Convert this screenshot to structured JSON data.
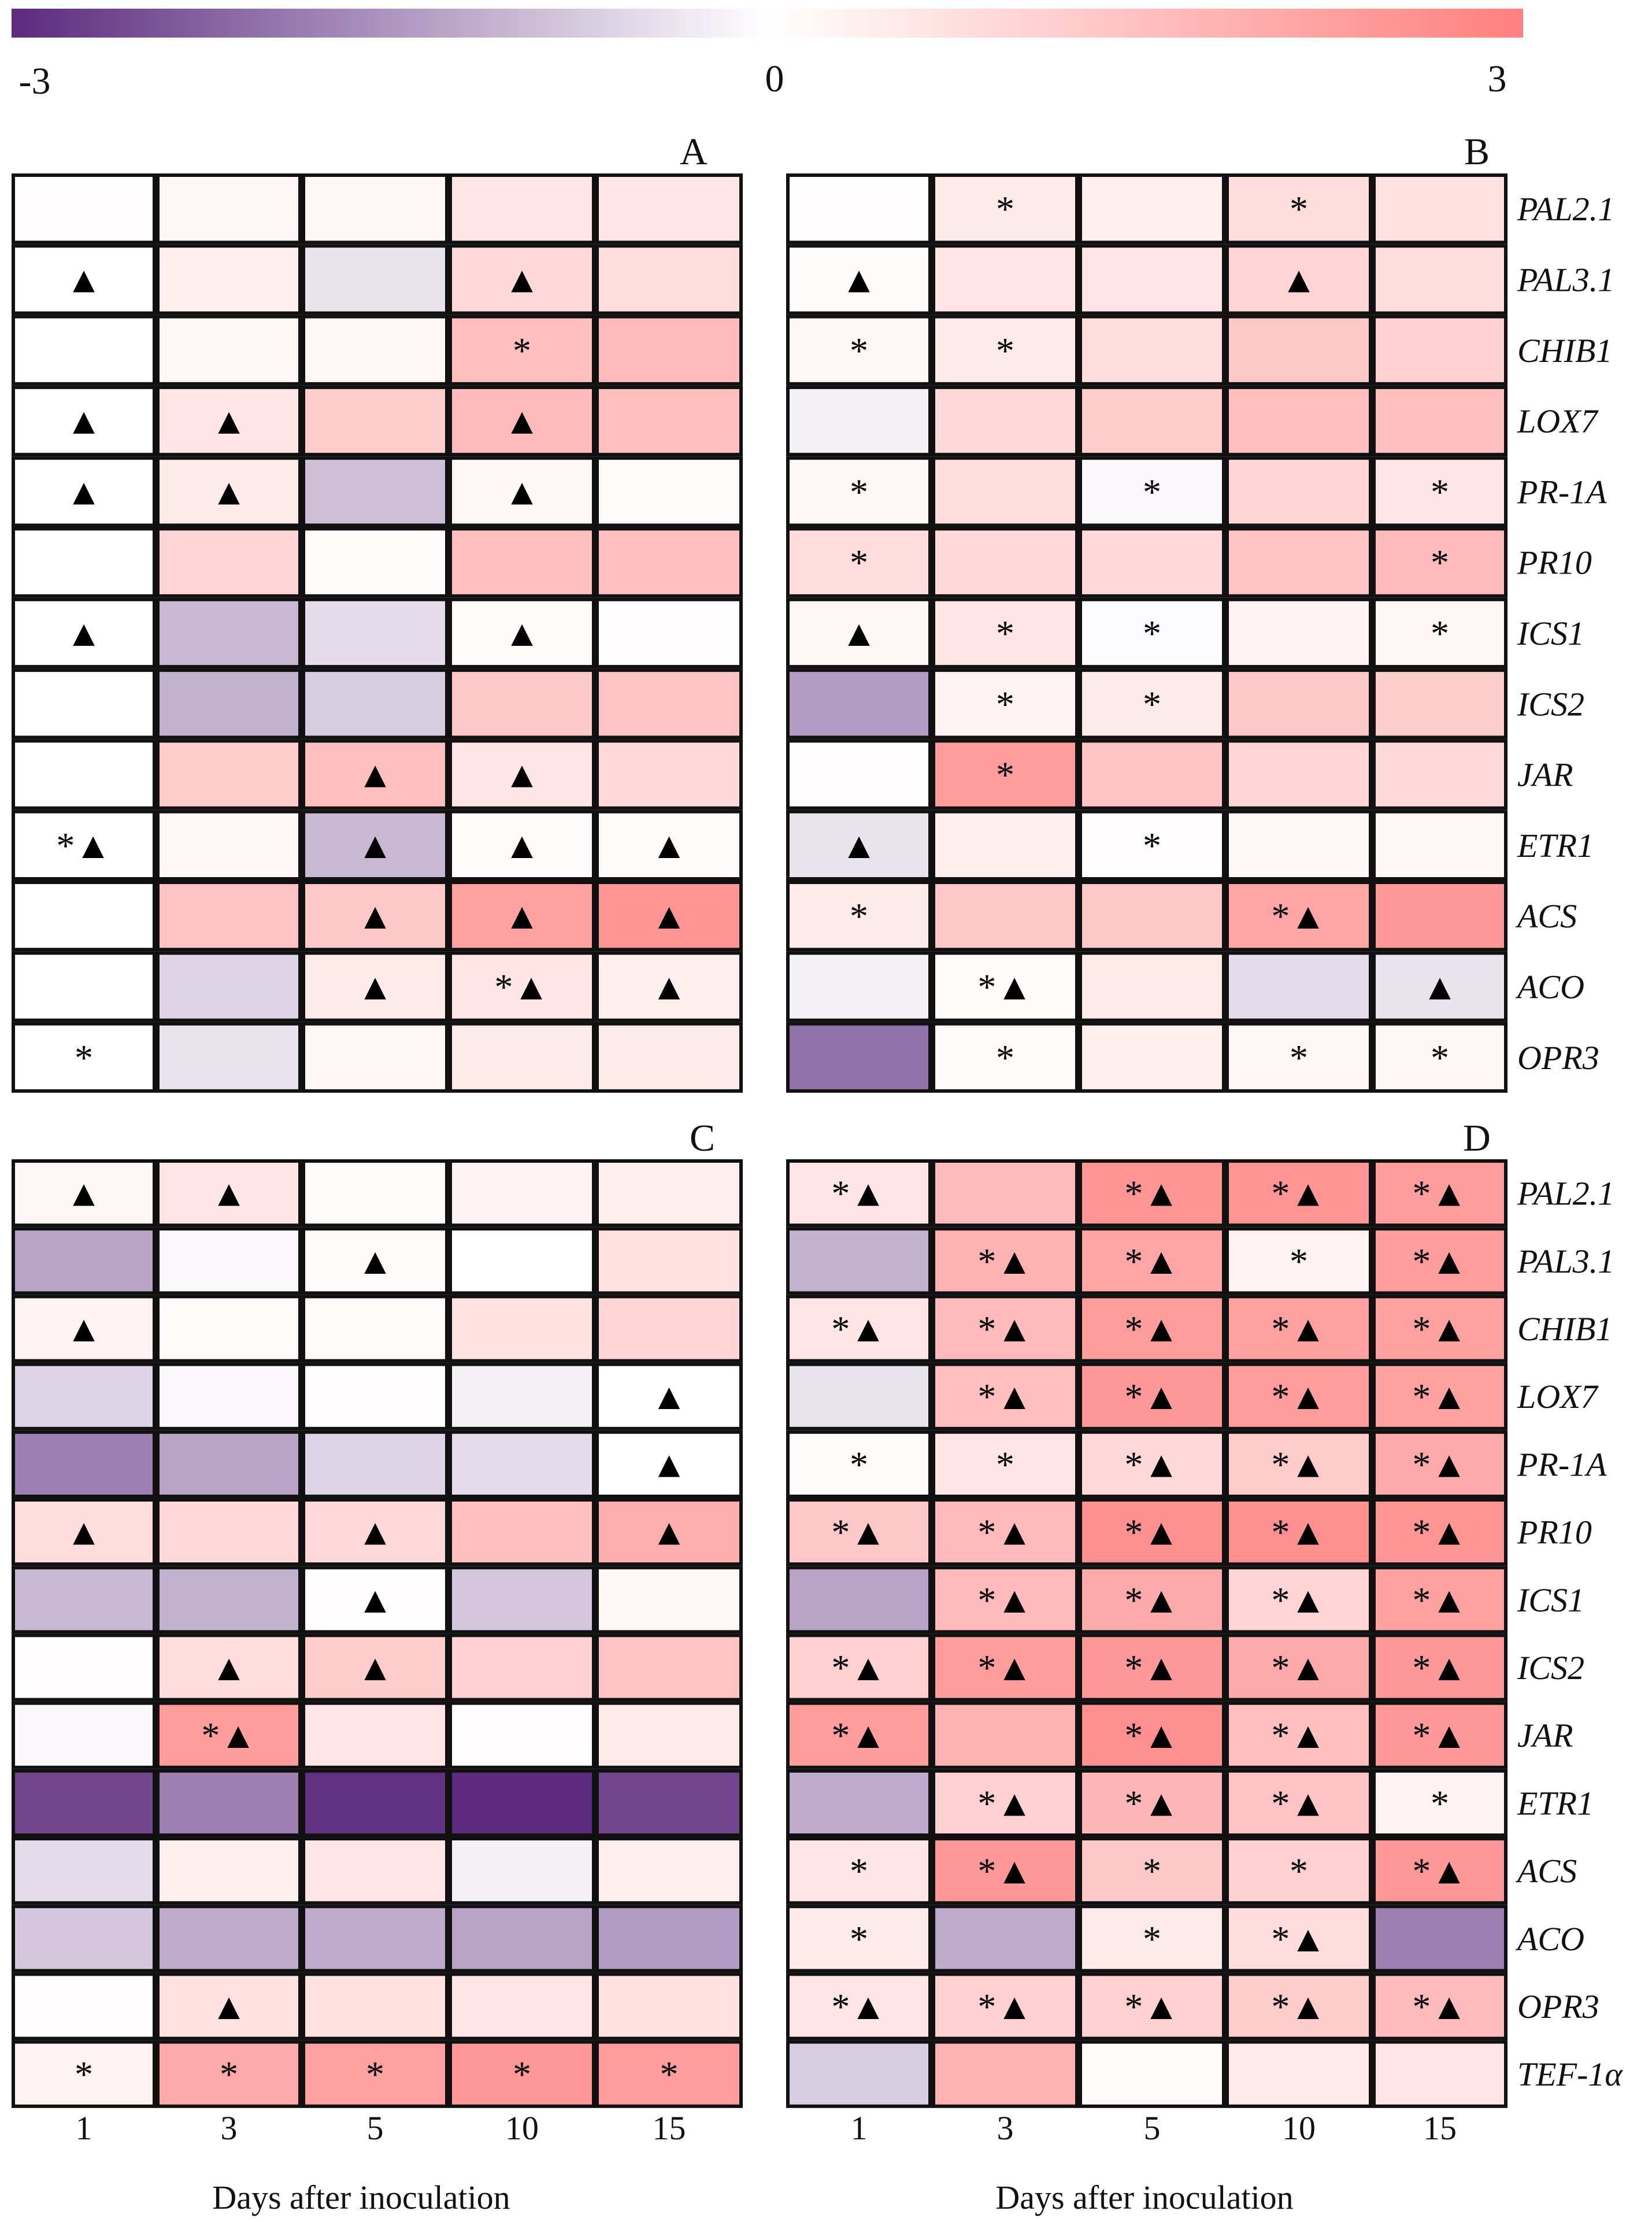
{
  "chart_data": {
    "type": "heatmap",
    "colorbar": {
      "min_label": "-3",
      "mid_label": "0",
      "max_label": "3",
      "min": -3,
      "max": 3,
      "colors": {
        "low": "#5c2a7e",
        "mid": "#ffffff",
        "high": "#ff7f7f"
      }
    },
    "days": [
      "1",
      "3",
      "5",
      "10",
      "15"
    ],
    "xlabel": "Days after inoculation",
    "gene_labels_top": [
      "PAL2.1",
      "PAL3.1",
      "CHIB1",
      "LOX7",
      "PR-1A",
      "PR10",
      "ICS1",
      "ICS2",
      "JAR",
      "ETR1",
      "ACS",
      "ACO",
      "OPR3"
    ],
    "gene_labels_bottom": [
      "PAL2.1",
      "PAL3.1",
      "CHIB1",
      "LOX7",
      "PR-1A",
      "PR10",
      "ICS1",
      "ICS2",
      "JAR",
      "ETR1",
      "ACS",
      "ACO",
      "OPR3",
      "TEF-1α"
    ],
    "panels": [
      {
        "label": "A",
        "values": [
          [
            0.05,
            0.2,
            0.2,
            0.6,
            0.6
          ],
          [
            0.0,
            0.35,
            -0.4,
            0.9,
            0.8
          ],
          [
            0.0,
            0.2,
            0.2,
            1.5,
            1.6
          ],
          [
            0.0,
            0.6,
            1.2,
            1.6,
            1.5
          ],
          [
            0.0,
            0.5,
            -0.9,
            0.2,
            0.1
          ],
          [
            0.0,
            1.0,
            0.1,
            1.5,
            1.5
          ],
          [
            0.0,
            -1.0,
            -0.5,
            0.1,
            0.05
          ],
          [
            0.0,
            -1.1,
            -0.7,
            1.3,
            1.4
          ],
          [
            0.0,
            1.2,
            1.5,
            0.6,
            0.9
          ],
          [
            0.0,
            0.2,
            -1.0,
            0.1,
            0.1
          ],
          [
            0.0,
            1.4,
            1.3,
            2.2,
            2.5
          ],
          [
            0.0,
            -0.6,
            0.5,
            0.6,
            0.4
          ],
          [
            0.0,
            -0.4,
            0.2,
            0.5,
            0.5
          ]
        ],
        "marks": [
          [
            "",
            "",
            "",
            "",
            ""
          ],
          [
            "▲",
            "",
            "",
            "▲",
            ""
          ],
          [
            "",
            "",
            "",
            "*",
            ""
          ],
          [
            "▲",
            "▲",
            "",
            "▲",
            ""
          ],
          [
            "▲",
            "▲",
            "",
            "▲",
            ""
          ],
          [
            "",
            "",
            "",
            "",
            ""
          ],
          [
            "▲",
            "",
            "",
            "▲",
            ""
          ],
          [
            "",
            "",
            "",
            "",
            ""
          ],
          [
            "",
            "",
            "▲",
            "▲",
            ""
          ],
          [
            "*▲",
            "",
            "▲",
            "▲",
            "▲"
          ],
          [
            "",
            "",
            "▲",
            "▲",
            "▲"
          ],
          [
            "",
            "",
            "▲",
            "*▲",
            "▲"
          ],
          [
            "*",
            "",
            "",
            "",
            ""
          ]
        ]
      },
      {
        "label": "B",
        "values": [
          [
            0.05,
            0.5,
            0.4,
            0.8,
            0.7
          ],
          [
            0.1,
            0.6,
            0.6,
            1.0,
            0.8
          ],
          [
            0.2,
            0.5,
            0.8,
            1.3,
            1.1
          ],
          [
            -0.2,
            0.9,
            1.2,
            1.5,
            1.5
          ],
          [
            0.2,
            0.8,
            -0.1,
            1.0,
            0.6
          ],
          [
            0.8,
            0.9,
            0.9,
            1.4,
            1.6
          ],
          [
            0.2,
            0.6,
            -0.05,
            0.3,
            0.2
          ],
          [
            -1.4,
            0.3,
            0.5,
            1.3,
            1.2
          ],
          [
            0.05,
            2.3,
            1.4,
            1.0,
            0.9
          ],
          [
            -0.4,
            0.4,
            0.05,
            0.2,
            0.2
          ],
          [
            0.5,
            1.3,
            1.3,
            2.1,
            2.4
          ],
          [
            -0.2,
            0.1,
            0.5,
            -0.5,
            -0.4
          ],
          [
            -2.0,
            0.1,
            0.4,
            0.2,
            0.2
          ]
        ],
        "marks": [
          [
            "",
            "*",
            "",
            "*",
            ""
          ],
          [
            "▲",
            "",
            "",
            "▲",
            ""
          ],
          [
            "*",
            "*",
            "",
            "",
            ""
          ],
          [
            "",
            "",
            "",
            "",
            ""
          ],
          [
            "*",
            "",
            "*",
            "",
            "*"
          ],
          [
            "*",
            "",
            "",
            "",
            "*"
          ],
          [
            "▲",
            "*",
            "*",
            "",
            "*"
          ],
          [
            "",
            "*",
            "*",
            "",
            ""
          ],
          [
            "",
            "*",
            "",
            "",
            ""
          ],
          [
            "▲",
            "",
            "*",
            "",
            ""
          ],
          [
            "*",
            "",
            "",
            "*▲",
            ""
          ],
          [
            "",
            "*▲",
            "",
            "",
            "▲"
          ],
          [
            "",
            "*",
            "",
            "*",
            "*"
          ]
        ]
      },
      {
        "label": "C",
        "values": [
          [
            0.2,
            0.6,
            0.1,
            0.3,
            0.4
          ],
          [
            -1.3,
            -0.1,
            0.1,
            0.0,
            0.7
          ],
          [
            0.3,
            0.1,
            0.1,
            0.7,
            1.0
          ],
          [
            -0.6,
            -0.1,
            0.05,
            -0.2,
            0.0
          ],
          [
            -1.8,
            -1.3,
            -0.6,
            -0.5,
            0.0
          ],
          [
            0.8,
            0.9,
            0.9,
            1.5,
            1.9
          ],
          [
            -1.0,
            -1.1,
            0.05,
            -0.8,
            0.2
          ],
          [
            0.05,
            0.8,
            1.2,
            1.1,
            1.4
          ],
          [
            -0.1,
            2.3,
            0.6,
            0.05,
            0.5
          ],
          [
            -2.6,
            -1.8,
            -2.9,
            -3.0,
            -2.6
          ],
          [
            -0.5,
            0.4,
            0.6,
            -0.2,
            0.4
          ],
          [
            -0.8,
            -1.2,
            -1.2,
            -1.3,
            -1.4
          ],
          [
            0.05,
            0.7,
            0.7,
            0.6,
            0.7
          ],
          [
            0.3,
            2.0,
            2.2,
            2.4,
            2.3
          ]
        ],
        "marks": [
          [
            "▲",
            "▲",
            "",
            "",
            ""
          ],
          [
            "",
            "",
            "▲",
            "",
            ""
          ],
          [
            "▲",
            "",
            "",
            "",
            ""
          ],
          [
            "",
            "",
            "",
            "",
            "▲"
          ],
          [
            "",
            "",
            "",
            "",
            "▲"
          ],
          [
            "▲",
            "",
            "▲",
            "",
            "▲"
          ],
          [
            "",
            "",
            "▲",
            "",
            ""
          ],
          [
            "",
            "▲",
            "▲",
            "",
            ""
          ],
          [
            "",
            "*▲",
            "",
            "",
            ""
          ],
          [
            "",
            "",
            "",
            "",
            ""
          ],
          [
            "",
            "",
            "",
            "",
            ""
          ],
          [
            "",
            "",
            "",
            "",
            ""
          ],
          [
            "",
            "▲",
            "",
            "",
            ""
          ],
          [
            "*",
            "*",
            "*",
            "*",
            "*"
          ]
        ]
      },
      {
        "label": "D",
        "values": [
          [
            0.6,
            1.6,
            2.5,
            2.5,
            2.3
          ],
          [
            -1.1,
            1.8,
            2.1,
            0.3,
            2.3
          ],
          [
            0.6,
            1.6,
            2.3,
            2.2,
            2.2
          ],
          [
            -0.4,
            1.5,
            2.4,
            2.3,
            2.2
          ],
          [
            0.1,
            0.6,
            0.9,
            1.2,
            2.0
          ],
          [
            1.3,
            1.6,
            2.6,
            2.6,
            2.5
          ],
          [
            -1.3,
            1.6,
            2.0,
            1.0,
            2.2
          ],
          [
            1.1,
            2.3,
            2.4,
            2.0,
            2.4
          ],
          [
            2.3,
            1.8,
            2.6,
            1.5,
            2.4
          ],
          [
            -1.2,
            1.1,
            1.7,
            1.4,
            0.3
          ],
          [
            0.6,
            2.4,
            1.3,
            1.1,
            2.4
          ],
          [
            0.5,
            -1.2,
            0.5,
            0.8,
            -1.8
          ],
          [
            0.6,
            1.1,
            1.1,
            1.2,
            1.6
          ],
          [
            -0.7,
            1.8,
            0.1,
            0.5,
            0.6
          ]
        ],
        "marks": [
          [
            "*▲",
            "",
            "*▲",
            "*▲",
            "*▲"
          ],
          [
            "",
            "*▲",
            "*▲",
            "*",
            "*▲"
          ],
          [
            "*▲",
            "*▲",
            "*▲",
            "*▲",
            "*▲"
          ],
          [
            "",
            "*▲",
            "*▲",
            "*▲",
            "*▲"
          ],
          [
            "*",
            "*",
            "*▲",
            "*▲",
            "*▲"
          ],
          [
            "*▲",
            "*▲",
            "*▲",
            "*▲",
            "*▲"
          ],
          [
            "",
            "*▲",
            "*▲",
            "*▲",
            "*▲"
          ],
          [
            "*▲",
            "*▲",
            "*▲",
            "*▲",
            "*▲"
          ],
          [
            "*▲",
            "",
            "*▲",
            "*▲",
            "*▲"
          ],
          [
            "",
            "*▲",
            "*▲",
            "*▲",
            "*"
          ],
          [
            "*",
            "*▲",
            "*",
            "*",
            "*▲"
          ],
          [
            "*",
            "",
            "*",
            "*▲",
            ""
          ],
          [
            "*▲",
            "*▲",
            "*▲",
            "*▲",
            "*▲"
          ],
          [
            "",
            "",
            "",
            "",
            ""
          ]
        ]
      }
    ]
  }
}
